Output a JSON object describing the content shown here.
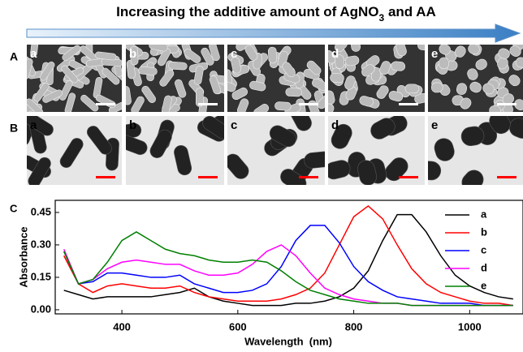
{
  "figure": {
    "title": [
      "Increasing the additive amount of AgNO",
      "3",
      " and AA"
    ],
    "row_labels": [
      "A",
      "B",
      "C"
    ],
    "panels_A": [
      "a",
      "b",
      "c",
      "d",
      "e"
    ],
    "panels_B": [
      "a",
      "b",
      "c",
      "d",
      "e"
    ]
  },
  "chart_data": {
    "type": "line",
    "x_label": "Wavelength  (nm)",
    "y_label": "Absorbance",
    "x": [
      300,
      325,
      350,
      375,
      400,
      425,
      450,
      475,
      500,
      525,
      550,
      575,
      600,
      625,
      650,
      675,
      700,
      725,
      750,
      775,
      800,
      825,
      850,
      875,
      900,
      925,
      950,
      975,
      1000,
      1025,
      1050,
      1075
    ],
    "series": [
      {
        "name": "a",
        "color": "#000000",
        "values": [
          0.09,
          0.07,
          0.05,
          0.06,
          0.06,
          0.06,
          0.06,
          0.07,
          0.08,
          0.1,
          0.06,
          0.04,
          0.03,
          0.02,
          0.02,
          0.02,
          0.03,
          0.03,
          0.04,
          0.06,
          0.1,
          0.18,
          0.32,
          0.44,
          0.44,
          0.36,
          0.25,
          0.16,
          0.11,
          0.08,
          0.06,
          0.05
        ]
      },
      {
        "name": "b",
        "color": "#ff0000",
        "values": [
          0.25,
          0.12,
          0.08,
          0.11,
          0.12,
          0.11,
          0.1,
          0.1,
          0.11,
          0.08,
          0.06,
          0.05,
          0.04,
          0.04,
          0.04,
          0.05,
          0.07,
          0.1,
          0.17,
          0.3,
          0.43,
          0.48,
          0.42,
          0.3,
          0.19,
          0.12,
          0.08,
          0.06,
          0.04,
          0.03,
          0.03,
          0.02
        ]
      },
      {
        "name": "c",
        "color": "#0000ff",
        "values": [
          0.27,
          0.12,
          0.13,
          0.17,
          0.17,
          0.16,
          0.15,
          0.15,
          0.16,
          0.12,
          0.1,
          0.08,
          0.08,
          0.09,
          0.12,
          0.2,
          0.32,
          0.39,
          0.39,
          0.31,
          0.2,
          0.13,
          0.09,
          0.06,
          0.05,
          0.04,
          0.03,
          0.03,
          0.03,
          0.02,
          0.02,
          0.02
        ]
      },
      {
        "name": "d",
        "color": "#ff00ff",
        "values": [
          0.28,
          0.12,
          0.14,
          0.19,
          0.22,
          0.23,
          0.22,
          0.21,
          0.21,
          0.18,
          0.16,
          0.16,
          0.17,
          0.21,
          0.27,
          0.3,
          0.25,
          0.17,
          0.1,
          0.07,
          0.05,
          0.04,
          0.03,
          0.03,
          0.02,
          0.02,
          0.02,
          0.02,
          0.02,
          0.02,
          0.02,
          0.02
        ]
      },
      {
        "name": "e",
        "color": "#008000",
        "values": [
          0.27,
          0.12,
          0.14,
          0.22,
          0.32,
          0.36,
          0.32,
          0.28,
          0.26,
          0.25,
          0.23,
          0.22,
          0.22,
          0.23,
          0.22,
          0.18,
          0.13,
          0.09,
          0.07,
          0.05,
          0.04,
          0.03,
          0.03,
          0.03,
          0.02,
          0.02,
          0.02,
          0.02,
          0.02,
          0.02,
          0.02,
          0.02
        ]
      }
    ],
    "xlim": [
      285,
      1092
    ],
    "ylim": [
      -0.019,
      0.506
    ],
    "xticks": [
      400,
      600,
      800,
      1000
    ],
    "yticks": [
      {
        "value": 0,
        "label": "0.00"
      },
      0.15,
      {
        "value": 0.3,
        "label": "0.30"
      },
      0.45
    ],
    "legend": "upper right"
  }
}
